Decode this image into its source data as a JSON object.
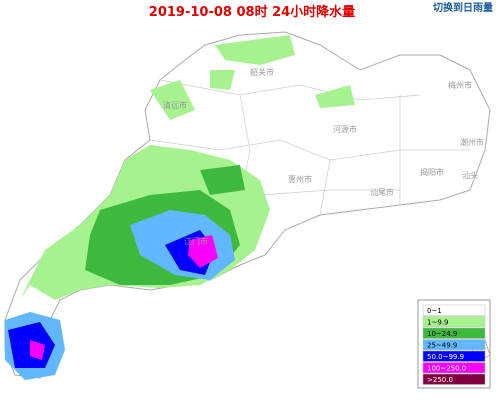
{
  "header": {
    "title": "2019-10-08 08时 24小时降水量",
    "switch_button": "切换到日雨量"
  },
  "cities": [
    {
      "label": "韶关市",
      "pos": "n"
    },
    {
      "label": "清远市",
      "pos": "nw"
    },
    {
      "label": "河源市",
      "pos": "c"
    },
    {
      "label": "梅州市",
      "pos": "ne"
    },
    {
      "label": "潮州市",
      "pos": "e"
    },
    {
      "label": "揭阳市",
      "pos": "e2"
    },
    {
      "label": "汕头",
      "pos": "e3"
    },
    {
      "label": "汕尾市",
      "pos": "se"
    },
    {
      "label": "惠州市",
      "pos": "c2"
    },
    {
      "label": "江门市",
      "pos": "s"
    }
  ],
  "legend": [
    {
      "label": "0~1",
      "color": "#ffffff",
      "text": "#000000"
    },
    {
      "label": "1~9.9",
      "color": "#a6f28f",
      "text": "#000000"
    },
    {
      "label": "10~24.9",
      "color": "#3dba3d",
      "text": "#000000"
    },
    {
      "label": "25~49.9",
      "color": "#61b8ff",
      "text": "#000000"
    },
    {
      "label": "50.0~99.9",
      "color": "#0000fe",
      "text": "#ffffff"
    },
    {
      "label": "100~250.0",
      "color": "#fa00fa",
      "text": "#ffffff"
    },
    {
      "label": ">250.0",
      "color": "#800040",
      "text": "#ffffff"
    }
  ]
}
